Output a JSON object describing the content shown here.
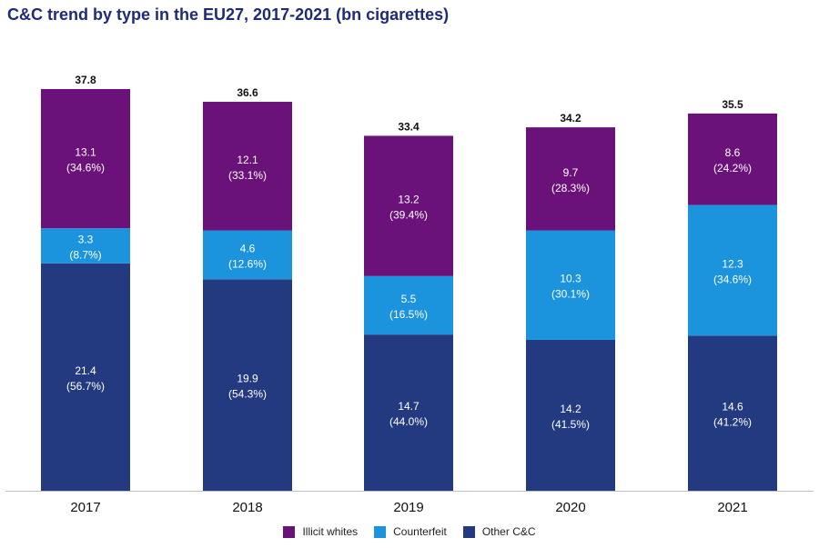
{
  "chart_data": {
    "type": "bar",
    "stacked": true,
    "title": "C&C trend by type in the EU27, 2017-2021 (bn cigarettes)",
    "xlabel": "",
    "ylabel": "",
    "ylim": [
      0,
      37.8
    ],
    "grid": false,
    "categories": [
      "2017",
      "2018",
      "2019",
      "2020",
      "2021"
    ],
    "totals": [
      "37.8",
      "36.6",
      "33.4",
      "34.2",
      "35.5"
    ],
    "series": [
      {
        "name": "Other C&C",
        "color": "#243a80",
        "values": [
          21.4,
          19.9,
          14.7,
          14.2,
          14.6
        ],
        "value_labels": [
          "21.4",
          "19.9",
          "14.7",
          "14.2",
          "14.6"
        ],
        "pct_labels": [
          "(56.7%)",
          "(54.3%)",
          "(44.0%)",
          "(41.5%)",
          "(41.2%)"
        ]
      },
      {
        "name": "Counterfeit",
        "color": "#1b93dd",
        "values": [
          3.3,
          4.6,
          5.5,
          10.3,
          12.3
        ],
        "value_labels": [
          "3.3",
          "4.6",
          "5.5",
          "10.3",
          "12.3"
        ],
        "pct_labels": [
          "(8.7%)",
          "(12.6%)",
          "(16.5%)",
          "(30.1%)",
          "(34.6%)"
        ]
      },
      {
        "name": "Illicit whites",
        "color": "#6a1279",
        "values": [
          13.1,
          12.1,
          13.2,
          9.7,
          8.6
        ],
        "value_labels": [
          "13.1",
          "12.1",
          "13.2",
          "9.7",
          "8.6"
        ],
        "pct_labels": [
          "(34.6%)",
          "(33.1%)",
          "(39.4%)",
          "(28.3%)",
          "(24.2%)"
        ]
      }
    ],
    "legend": {
      "placement": "bottom-center",
      "items": [
        {
          "name": "Illicit whites",
          "color": "#6a1279"
        },
        {
          "name": "Counterfeit",
          "color": "#1b93dd"
        },
        {
          "name": "Other C&C",
          "color": "#243a80"
        }
      ]
    }
  }
}
